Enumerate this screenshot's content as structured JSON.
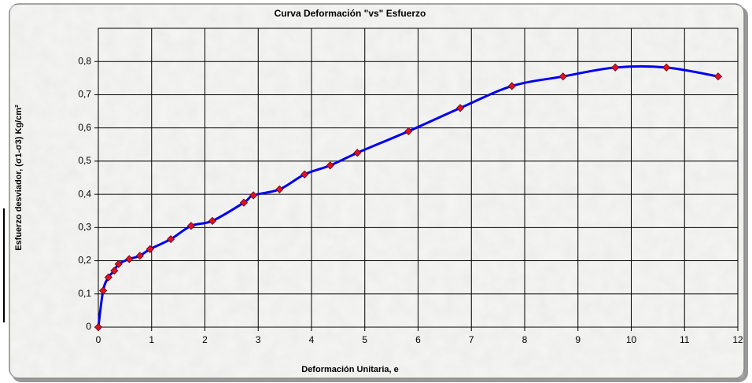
{
  "chart_data": {
    "type": "line",
    "title": "Curva Deformación \"vs\" Esfuerzo",
    "x_label": "Deformación Unitaria, e",
    "y_label": "Esfuerzo desviador, (σ1-σ3) Kg/cm²",
    "series": [
      {
        "name": "Esfuerzo",
        "color": "#0000ee",
        "marker_color": "#e0102a",
        "x": [
          0,
          0.09,
          0.19,
          0.3,
          0.38,
          0.58,
          0.78,
          0.97,
          1.36,
          1.74,
          2.14,
          2.73,
          2.91,
          3.4,
          3.87,
          4.35,
          4.86,
          5.82,
          6.79,
          7.76,
          8.72,
          9.7,
          10.66,
          11.63
        ],
        "values": [
          0,
          0.11,
          0.15,
          0.17,
          0.19,
          0.205,
          0.215,
          0.235,
          0.265,
          0.305,
          0.32,
          0.375,
          0.397,
          0.415,
          0.46,
          0.487,
          0.525,
          0.59,
          0.66,
          0.726,
          0.755,
          0.782,
          0.782,
          0.755
        ]
      }
    ],
    "xlim": [
      0,
      12
    ],
    "xticks": [
      0,
      1,
      2,
      3,
      4,
      5,
      6,
      7,
      8,
      9,
      10,
      11,
      12
    ],
    "ylim": [
      0,
      0.9
    ],
    "yticks": [
      0,
      {
        "value": 0.1,
        "label": "0,1"
      },
      {
        "value": 0.2,
        "label": "0,2"
      },
      {
        "value": 0.3,
        "label": "0,3"
      },
      {
        "value": 0.4,
        "label": "0,4"
      },
      {
        "value": 0.5,
        "label": "0,5"
      },
      {
        "value": 0.6,
        "label": "0,6"
      },
      {
        "value": 0.7,
        "label": "0,7"
      },
      {
        "value": 0.8,
        "label": "0,8"
      }
    ],
    "grid": true
  }
}
